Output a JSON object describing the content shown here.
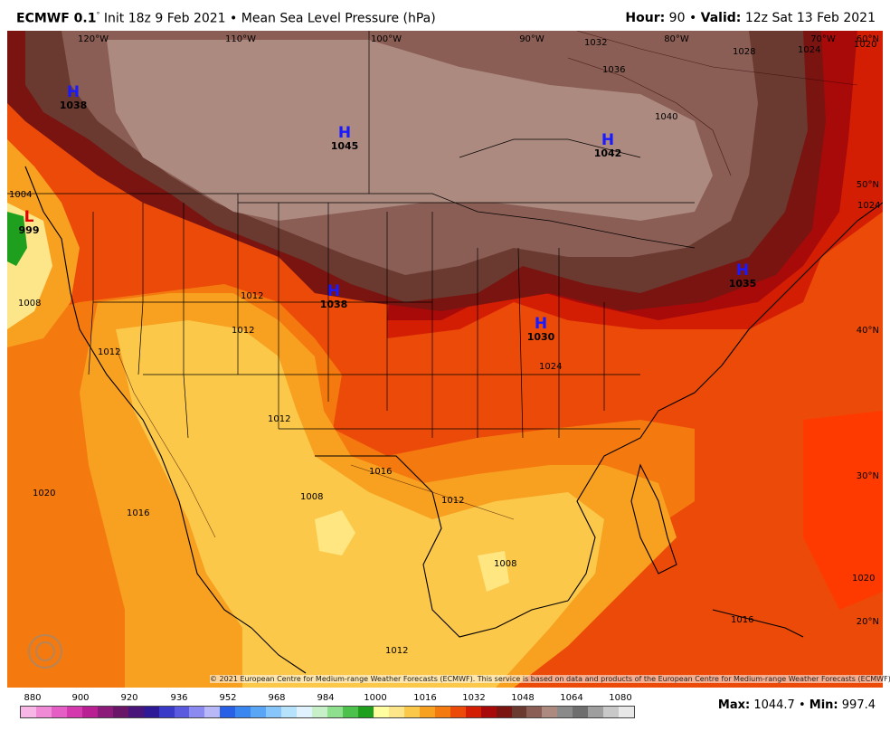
{
  "header": {
    "model": "ECMWF 0.1",
    "init": "Init 18z 9 Feb 2021",
    "product": "Mean Sea Level Pressure (hPa)",
    "hour_label": "Hour:",
    "hour_value": "90",
    "valid_label": "Valid:",
    "valid_value": "12z Sat 13 Feb 2021"
  },
  "footer": {
    "copyright": "© 2021 European Centre for Medium-range Weather Forecasts (ECMWF). This service is based on data and products of the European Centre for Medium-range Weather Forecasts (ECMWF).",
    "max_label": "Max:",
    "max_value": "1044.7",
    "min_label": "Min:",
    "min_value": "997.4",
    "legend_ticks": [
      "880",
      "900",
      "920",
      "936",
      "952",
      "968",
      "984",
      "1000",
      "1016",
      "1032",
      "1048",
      "1064",
      "1080"
    ]
  },
  "colors": {
    "legend": [
      "#f7b6e6",
      "#f08ad6",
      "#e45ec6",
      "#d43aae",
      "#b81f92",
      "#8c1a7a",
      "#6a1668",
      "#4a157a",
      "#2e1a96",
      "#3a3ac8",
      "#5a5ae0",
      "#8a8af0",
      "#b8b8f8",
      "#2860e6",
      "#3a86f0",
      "#5aa6f6",
      "#86c6fa",
      "#b6e2fc",
      "#dff2fe",
      "#c8f0c8",
      "#8ee08e",
      "#4cc24c",
      "#1ea01e",
      "#ffffa0",
      "#fde68a",
      "#fbc84a",
      "#f8a020",
      "#f47a10",
      "#ec4a08",
      "#d41e04",
      "#a80a0a",
      "#7a1410",
      "#6a3a30",
      "#8a5e54",
      "#ad8a80",
      "#8a8a8a",
      "#6e6e6e",
      "#9e9e9e",
      "#c8c8c8",
      "#e8e8e8"
    ]
  },
  "longitudes": [
    "120°W",
    "110°W",
    "100°W",
    "90°W",
    "80°W",
    "70°W"
  ],
  "latitudes": [
    "60°N",
    "50°N",
    "40°N",
    "30°N",
    "20°N"
  ],
  "systems": [
    {
      "type": "H",
      "value": "1038"
    },
    {
      "type": "H",
      "value": "1045"
    },
    {
      "type": "H",
      "value": "1042"
    },
    {
      "type": "L",
      "value": "999"
    },
    {
      "type": "H",
      "value": "1038"
    },
    {
      "type": "H",
      "value": "1030"
    },
    {
      "type": "H",
      "value": "1035"
    }
  ],
  "isobar_labels": [
    "1032",
    "1036",
    "1028",
    "1024",
    "1020",
    "1040",
    "1024",
    "1004",
    "1008",
    "1012",
    "1012",
    "1012",
    "1012",
    "1024",
    "1016",
    "1012",
    "1008",
    "1008",
    "1020",
    "1016",
    "1020",
    "1016",
    "1012"
  ]
}
